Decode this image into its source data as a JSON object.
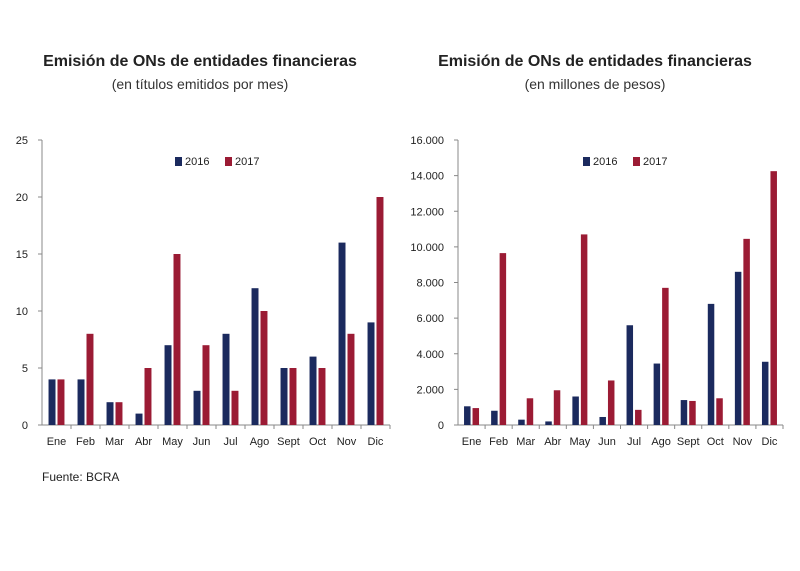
{
  "source": "Fuente: BCRA",
  "chart_data": [
    {
      "type": "bar",
      "title": "Emisión de ONs de entidades financieras",
      "subtitle": "(en títulos emitidos por mes)",
      "categories": [
        "Ene",
        "Feb",
        "Mar",
        "Abr",
        "May",
        "Jun",
        "Jul",
        "Ago",
        "Sept",
        "Oct",
        "Nov",
        "Dic"
      ],
      "series": [
        {
          "name": "2016",
          "color": "#1b2a5e",
          "values": [
            4,
            4,
            2,
            1,
            7,
            3,
            8,
            12,
            5,
            6,
            16,
            9
          ]
        },
        {
          "name": "2017",
          "color": "#9b1b34",
          "values": [
            4,
            8,
            2,
            5,
            15,
            7,
            3,
            10,
            5,
            5,
            8,
            20
          ]
        }
      ],
      "ylim": [
        0,
        25
      ],
      "yticks": [
        0,
        5,
        10,
        15,
        20,
        25
      ],
      "ytick_labels": [
        "0",
        "5",
        "10",
        "15",
        "20",
        "25"
      ],
      "legend": "top-center"
    },
    {
      "type": "bar",
      "title": "Emisión de ONs de entidades financieras",
      "subtitle": "(en millones de pesos)",
      "categories": [
        "Ene",
        "Feb",
        "Mar",
        "Abr",
        "May",
        "Jun",
        "Jul",
        "Ago",
        "Sept",
        "Oct",
        "Nov",
        "Dic"
      ],
      "series": [
        {
          "name": "2016",
          "color": "#1b2a5e",
          "values": [
            1050,
            800,
            300,
            200,
            1600,
            450,
            5600,
            3450,
            1400,
            6800,
            8600,
            3550
          ]
        },
        {
          "name": "2017",
          "color": "#9b1b34",
          "values": [
            950,
            9650,
            1500,
            1950,
            10700,
            2500,
            850,
            7700,
            1350,
            1500,
            10450,
            14250
          ]
        }
      ],
      "ylim": [
        0,
        16000
      ],
      "yticks": [
        0,
        2000,
        4000,
        6000,
        8000,
        10000,
        12000,
        14000,
        16000
      ],
      "ytick_labels": [
        "0",
        "2.000",
        "4.000",
        "6.000",
        "8.000",
        "10.000",
        "12.000",
        "14.000",
        "16.000"
      ],
      "legend": "top-center"
    }
  ]
}
